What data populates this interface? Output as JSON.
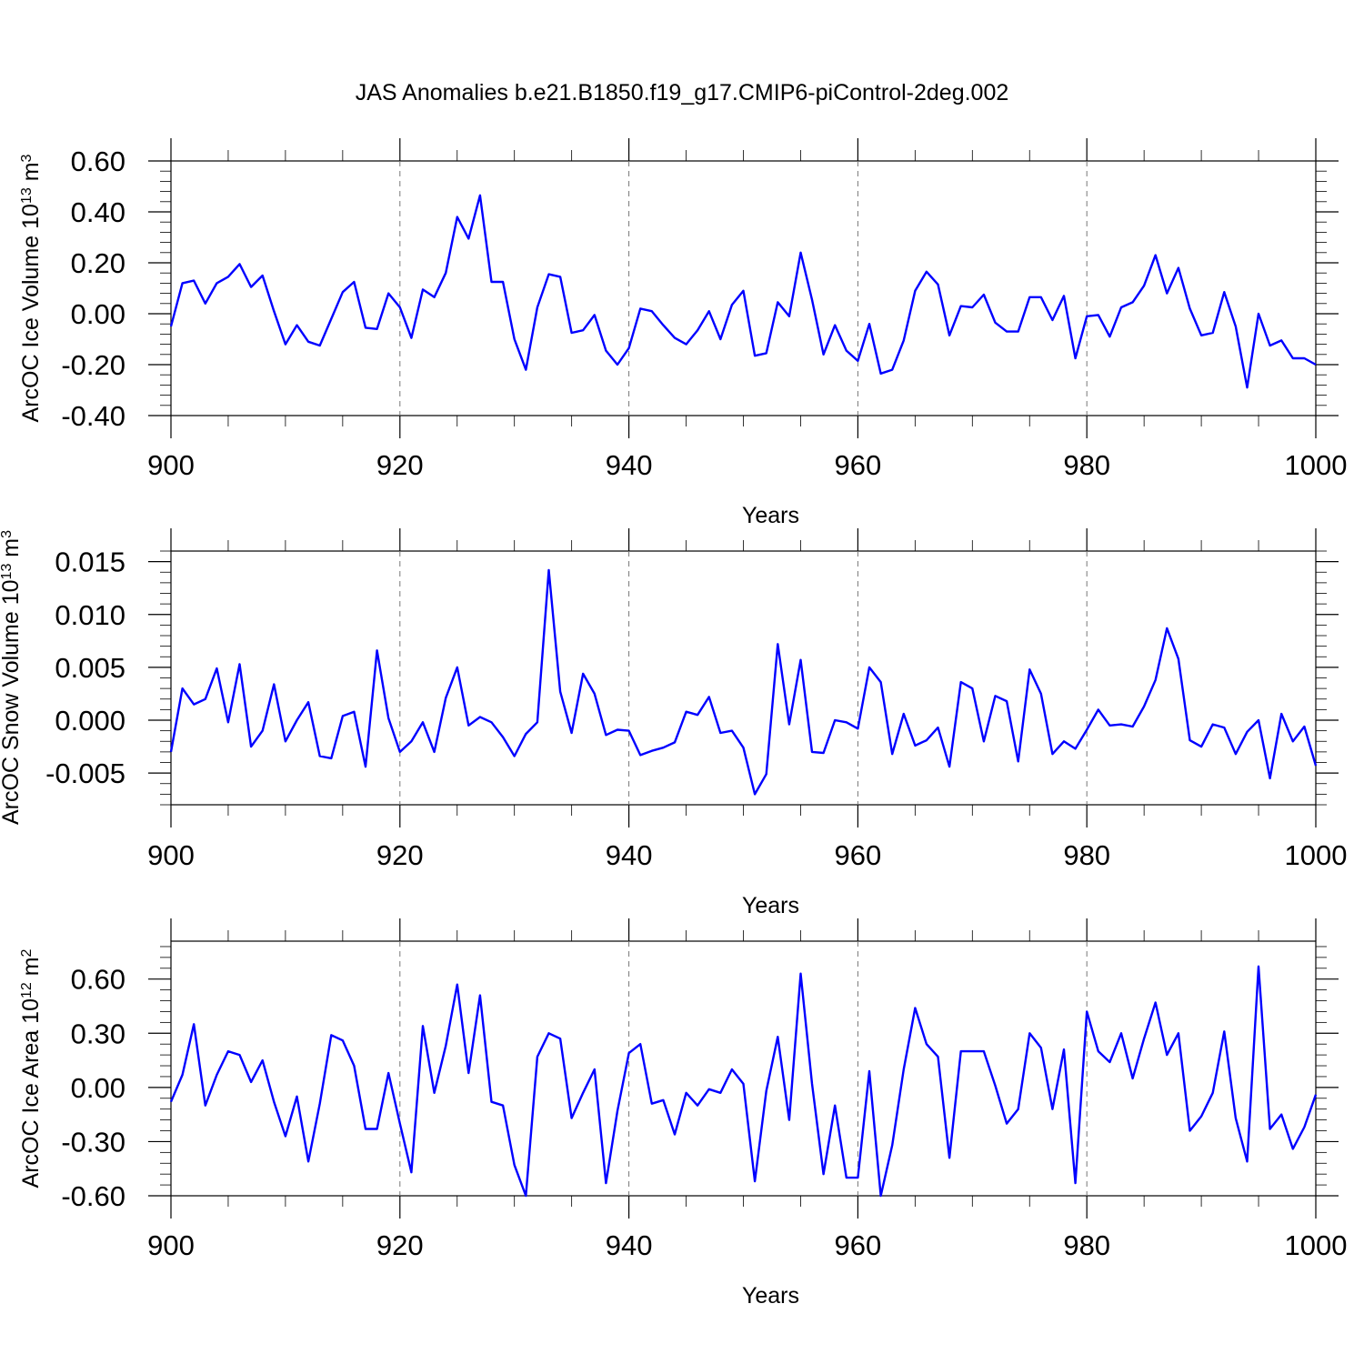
{
  "page": {
    "title": "JAS Anomalies b.e21.B1850.f19_g17.CMIP6-piControl-2deg.002"
  },
  "colors": {
    "line": "#0000ff",
    "frame": "#000000",
    "grid": "#777777"
  },
  "chart_data": [
    {
      "type": "line",
      "title": "JAS Anomalies b.e21.B1850.f19_g17.CMIP6-piControl-2deg.002",
      "xlabel": "Years",
      "ylabel": {
        "main": "ArcOC Ice Volume 10",
        "exp": "13",
        "unit": " m",
        "unit_exp": "3"
      },
      "xlim": [
        900,
        1000
      ],
      "ylim": [
        -0.4,
        0.6
      ],
      "xticks": [
        900,
        920,
        940,
        960,
        980,
        1000
      ],
      "yticks": [
        -0.4,
        -0.2,
        0.0,
        0.2,
        0.4,
        0.6
      ],
      "ytick_labels": [
        "-0.40",
        "-0.20",
        "0.00",
        "0.20",
        "0.40",
        "0.60"
      ],
      "grid_x": [
        920,
        940,
        960,
        980
      ],
      "x_start": 900,
      "series": [
        {
          "name": "ArcOC Ice Volume",
          "color": "#0000ff",
          "values": [
            -0.05,
            0.12,
            0.13,
            0.04,
            0.12,
            0.145,
            0.195,
            0.105,
            0.15,
            0.01,
            -0.12,
            -0.045,
            -0.11,
            -0.125,
            -0.02,
            0.085,
            0.125,
            -0.055,
            -0.06,
            0.08,
            0.025,
            -0.095,
            0.095,
            0.065,
            0.16,
            0.38,
            0.295,
            0.465,
            0.125,
            0.125,
            -0.1,
            -0.22,
            0.025,
            0.155,
            0.145,
            -0.075,
            -0.065,
            -0.005,
            -0.145,
            -0.2,
            -0.135,
            0.02,
            0.01,
            -0.045,
            -0.095,
            -0.12,
            -0.065,
            0.01,
            -0.1,
            0.035,
            0.09,
            -0.165,
            -0.155,
            0.045,
            -0.01,
            0.24,
            0.055,
            -0.16,
            -0.045,
            -0.145,
            -0.185,
            -0.04,
            -0.235,
            -0.22,
            -0.105,
            0.09,
            0.165,
            0.115,
            -0.085,
            0.03,
            0.025,
            0.075,
            -0.035,
            -0.07,
            -0.07,
            0.065,
            0.065,
            -0.025,
            0.07,
            -0.175,
            -0.01,
            -0.005,
            -0.09,
            0.025,
            0.045,
            0.11,
            0.23,
            0.08,
            0.18,
            0.02,
            -0.085,
            -0.075,
            0.085,
            -0.05,
            -0.29,
            0.0,
            -0.125,
            -0.105,
            -0.175,
            -0.175,
            -0.2
          ]
        }
      ]
    },
    {
      "type": "line",
      "xlabel": "Years",
      "ylabel": {
        "main": "ArcOC Snow Volume 10",
        "exp": "13",
        "unit": " m",
        "unit_exp": "3"
      },
      "xlim": [
        900,
        1000
      ],
      "ylim": [
        -0.008,
        0.016
      ],
      "xticks": [
        900,
        920,
        940,
        960,
        980,
        1000
      ],
      "yticks": [
        -0.005,
        0.0,
        0.005,
        0.01,
        0.015
      ],
      "ytick_labels": [
        "-0.005",
        "0.000",
        "0.005",
        "0.010",
        "0.015"
      ],
      "grid_x": [
        920,
        940,
        960,
        980
      ],
      "x_start": 900,
      "series": [
        {
          "name": "ArcOC Snow Volume",
          "color": "#0000ff",
          "values": [
            -0.003,
            0.003,
            0.0015,
            0.002,
            0.0049,
            -0.0002,
            0.0053,
            -0.0025,
            -0.001,
            0.0034,
            -0.002,
            0.0,
            0.0017,
            -0.0034,
            -0.0036,
            0.0004,
            0.0008,
            -0.0044,
            0.0066,
            0.0002,
            -0.003,
            -0.002,
            -0.0002,
            -0.003,
            0.0021,
            0.005,
            -0.0005,
            0.0003,
            -0.0002,
            -0.0016,
            -0.0034,
            -0.0013,
            -0.0002,
            0.0142,
            0.0027,
            -0.0012,
            0.0044,
            0.0025,
            -0.0014,
            -0.0009,
            -0.001,
            -0.0033,
            -0.0029,
            -0.0026,
            -0.0021,
            0.0008,
            0.0005,
            0.0022,
            -0.0012,
            -0.001,
            -0.0026,
            -0.007,
            -0.0051,
            0.0072,
            -0.0004,
            0.0057,
            -0.003,
            -0.0031,
            0.0,
            -0.0002,
            -0.0008,
            0.005,
            0.0036,
            -0.0032,
            0.0006,
            -0.0024,
            -0.0019,
            -0.0007,
            -0.0044,
            0.0036,
            0.003,
            -0.002,
            0.0023,
            0.0018,
            -0.0039,
            0.0048,
            0.0025,
            -0.0032,
            -0.002,
            -0.0027,
            -0.0009,
            0.001,
            -0.0005,
            -0.0004,
            -0.0006,
            0.0013,
            0.0038,
            0.0087,
            0.0058,
            -0.0019,
            -0.0025,
            -0.0004,
            -0.0007,
            -0.0032,
            -0.0011,
            0.0,
            -0.0055,
            0.0006,
            -0.002,
            -0.0006,
            -0.0043
          ]
        }
      ]
    },
    {
      "type": "line",
      "xlabel": "Years",
      "ylabel": {
        "main": "ArcOC Ice Area 10",
        "exp": "12",
        "unit": " m",
        "unit_exp": "2"
      },
      "xlim": [
        900,
        1000
      ],
      "ylim": [
        -0.6,
        0.81
      ],
      "xticks": [
        900,
        920,
        940,
        960,
        980,
        1000
      ],
      "yticks": [
        -0.6,
        -0.3,
        0.0,
        0.3,
        0.6
      ],
      "ytick_labels": [
        "-0.60",
        "-0.30",
        "0.00",
        "0.30",
        "0.60"
      ],
      "grid_x": [
        920,
        940,
        960,
        980
      ],
      "x_start": 900,
      "series": [
        {
          "name": "ArcOC Ice Area",
          "color": "#0000ff",
          "values": [
            -0.08,
            0.07,
            0.35,
            -0.1,
            0.07,
            0.2,
            0.18,
            0.03,
            0.15,
            -0.08,
            -0.27,
            -0.05,
            -0.41,
            -0.09,
            0.29,
            0.26,
            0.12,
            -0.23,
            -0.23,
            0.08,
            -0.2,
            -0.47,
            0.34,
            -0.03,
            0.23,
            0.57,
            0.08,
            0.51,
            -0.08,
            -0.1,
            -0.43,
            -0.6,
            0.17,
            0.3,
            0.27,
            -0.17,
            -0.03,
            0.1,
            -0.53,
            -0.13,
            0.19,
            0.24,
            -0.09,
            -0.07,
            -0.26,
            -0.03,
            -0.1,
            -0.01,
            -0.03,
            0.1,
            0.02,
            -0.52,
            -0.02,
            0.28,
            -0.18,
            0.63,
            0.02,
            -0.48,
            -0.1,
            -0.5,
            -0.5,
            0.09,
            -0.6,
            -0.32,
            0.1,
            0.44,
            0.24,
            0.17,
            -0.39,
            0.2,
            0.2,
            0.2,
            0.01,
            -0.2,
            -0.12,
            0.3,
            0.22,
            -0.12,
            0.21,
            -0.53,
            0.42,
            0.2,
            0.14,
            0.3,
            0.05,
            0.27,
            0.47,
            0.18,
            0.3,
            -0.24,
            -0.16,
            -0.03,
            0.31,
            -0.17,
            -0.41,
            0.67,
            -0.23,
            -0.15,
            -0.34,
            -0.22,
            -0.04
          ]
        }
      ]
    }
  ]
}
